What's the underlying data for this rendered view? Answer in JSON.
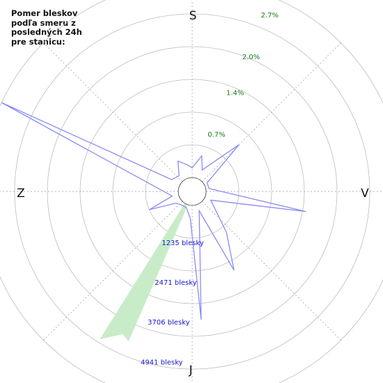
{
  "title_lines": [
    "Pomer bleskov",
    "podľa smeru z",
    "posledných 24h",
    "pre stanicu:"
  ],
  "colors": {
    "lightning_line": "#8a8af5",
    "sector_fill": "#c8ecc8",
    "percent_label": "#1a7a1a",
    "count_label": "#1515d0",
    "grid": "#999999"
  },
  "chart_data": {
    "type": "polar",
    "directions": {
      "north": "S",
      "east": "V",
      "south": "J",
      "west": "Z"
    },
    "percent_ticks": [
      {
        "value": 0.7,
        "label": "0.7%"
      },
      {
        "value": 1.4,
        "label": "1.4%"
      },
      {
        "value": 2.0,
        "label": "2.0%"
      },
      {
        "value": 2.7,
        "label": "2.7%"
      }
    ],
    "count_ticks": [
      {
        "value": 1235,
        "label": "1235 blesky"
      },
      {
        "value": 2471,
        "label": "2471 blesky"
      },
      {
        "value": 3706,
        "label": "3706 blesky"
      },
      {
        "value": 4941,
        "label": "4941 blesky"
      }
    ],
    "series": [
      {
        "type": "line",
        "unit": "%",
        "points": [
          {
            "angle": 0,
            "value": 0.15
          },
          {
            "angle": 15,
            "value": 0.35
          },
          {
            "angle": 25,
            "value": 0.15
          },
          {
            "angle": 45,
            "value": 0.8
          },
          {
            "angle": 60,
            "value": 0.05
          },
          {
            "angle": 80,
            "value": 0.05
          },
          {
            "angle": 100,
            "value": 1.55
          },
          {
            "angle": 115,
            "value": 0.1
          },
          {
            "angle": 140,
            "value": 0.6
          },
          {
            "angle": 152,
            "value": 1.15
          },
          {
            "angle": 160,
            "value": 0.1
          },
          {
            "angle": 176,
            "value": 1.75
          },
          {
            "angle": 184,
            "value": 0.2
          },
          {
            "angle": 200,
            "value": 0.05
          },
          {
            "angle": 220,
            "value": 0.05
          },
          {
            "angle": 235,
            "value": 0.1
          },
          {
            "angle": 247,
            "value": 0.5
          },
          {
            "angle": 257,
            "value": 0.1
          },
          {
            "angle": 295,
            "value": 3.0
          },
          {
            "angle": 300,
            "value": 0.15
          },
          {
            "angle": 320,
            "value": 0.1
          },
          {
            "angle": 335,
            "value": 0.3
          },
          {
            "angle": 350,
            "value": 0.2
          }
        ]
      },
      {
        "type": "sector",
        "unit": "count",
        "points": [
          {
            "angle": 212,
            "value": 4900
          },
          {
            "angle": 206,
            "value": 4420
          },
          {
            "angle": 203,
            "value": 4550
          },
          {
            "angle": 200,
            "value": 300
          }
        ]
      }
    ]
  }
}
